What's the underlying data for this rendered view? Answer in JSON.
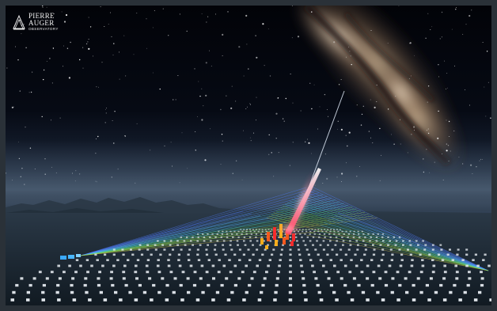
{
  "logo": {
    "line1": "PIERRE",
    "line2": "AUGER",
    "line3": "OBSERVATORY"
  },
  "colors": {
    "frame_border": "#2a3138",
    "sky_top": "#020308",
    "horizon": "#39495e",
    "cosmic_ray_track": "#ff5a6e",
    "detector_cube": "#e8edf2",
    "fluorescence_blue": "#5aa6ff",
    "fluorescence_green": "#5cd65a",
    "shower_footprint": "#ff5a1a"
  },
  "icons": {
    "logo_mark": "observatory-logo-icon"
  }
}
